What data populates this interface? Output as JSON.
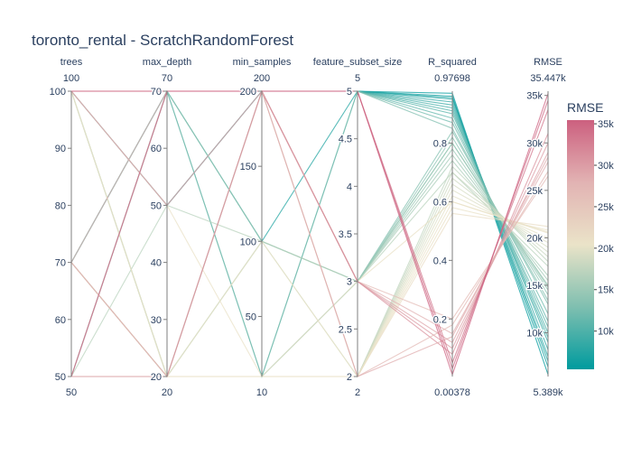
{
  "chart_data": {
    "type": "parallel_coordinates",
    "title": "toronto_rental - ScratchRandomForest",
    "color_by": "RMSE",
    "colorscale": [
      "#009B9E",
      "#42B7B9",
      "#A7D3D4",
      "#F1F1F1",
      "#E4C1D9",
      "#D691C1",
      "#C75DAB"
    ],
    "colorscale_shown": [
      "#009B9E",
      "#7fbfb0",
      "#eae3c8",
      "#e2b3b3",
      "#cc607f"
    ],
    "colorbar": {
      "title": "RMSE",
      "range": [
        5389,
        35447
      ],
      "ticks": [
        10000,
        15000,
        20000,
        25000,
        30000,
        35000
      ],
      "tick_labels": [
        "10k",
        "15k",
        "20k",
        "25k",
        "30k",
        "35k"
      ]
    },
    "dimensions": [
      {
        "label": "trees",
        "range": [
          50,
          100
        ],
        "range_labels": [
          "50",
          "100"
        ],
        "ticks": [
          50,
          60,
          70,
          80,
          90,
          100
        ],
        "tick_labels": [
          "50",
          "60",
          "70",
          "80",
          "90",
          "100"
        ]
      },
      {
        "label": "max_depth",
        "range": [
          20,
          70
        ],
        "range_labels": [
          "20",
          "70"
        ],
        "ticks": [
          20,
          30,
          40,
          50,
          60,
          70
        ],
        "tick_labels": [
          "20",
          "30",
          "40",
          "50",
          "60",
          "70"
        ]
      },
      {
        "label": "min_samples",
        "range": [
          10,
          200
        ],
        "range_labels": [
          "10",
          "200"
        ],
        "ticks": [
          50,
          100,
          150,
          200
        ],
        "tick_labels": [
          "50",
          "100",
          "150",
          "200"
        ]
      },
      {
        "label": "feature_subset_size",
        "range": [
          2,
          5
        ],
        "range_labels": [
          "2",
          "5"
        ],
        "ticks": [
          2,
          2.5,
          3,
          3.5,
          4,
          4.5,
          5
        ],
        "tick_labels": [
          "2",
          "2.5",
          "3",
          "3.5",
          "4",
          "4.5",
          "5"
        ]
      },
      {
        "label": "R_squared",
        "range": [
          0.00378,
          0.97698
        ],
        "range_labels": [
          "0.00378",
          "0.97698"
        ],
        "ticks": [
          0.2,
          0.4,
          0.6,
          0.8
        ],
        "tick_labels": [
          "0.2",
          "0.4",
          "0.6",
          "0.8"
        ]
      },
      {
        "label": "RMSE",
        "range": [
          5389,
          35447
        ],
        "range_labels": [
          "5.389k",
          "35.447k"
        ],
        "ticks": [
          10000,
          15000,
          20000,
          25000,
          30000,
          35000
        ],
        "tick_labels": [
          "10k",
          "15k",
          "20k",
          "25k",
          "30k",
          "35k"
        ]
      }
    ],
    "rows": [
      [
        100,
        70,
        200,
        5,
        0.97,
        5600
      ],
      [
        100,
        70,
        200,
        5,
        0.96,
        6400
      ],
      [
        100,
        70,
        200,
        5,
        0.955,
        7000
      ],
      [
        100,
        70,
        100,
        5,
        0.95,
        7500
      ],
      [
        100,
        50,
        200,
        5,
        0.94,
        8200
      ],
      [
        70,
        70,
        200,
        5,
        0.93,
        9000
      ],
      [
        70,
        70,
        200,
        5,
        0.92,
        9500
      ],
      [
        100,
        70,
        10,
        5,
        0.91,
        10000
      ],
      [
        50,
        70,
        200,
        5,
        0.9,
        10600
      ],
      [
        50,
        70,
        200,
        5,
        0.885,
        11200
      ],
      [
        100,
        50,
        200,
        5,
        0.87,
        12000
      ],
      [
        70,
        70,
        10,
        5,
        0.85,
        13000
      ],
      [
        50,
        70,
        100,
        3,
        0.84,
        13400
      ],
      [
        100,
        70,
        100,
        3,
        0.82,
        14000
      ],
      [
        70,
        20,
        200,
        3,
        0.8,
        14500
      ],
      [
        50,
        20,
        10,
        3,
        0.78,
        15000
      ],
      [
        100,
        20,
        100,
        3,
        0.76,
        15500
      ],
      [
        70,
        20,
        200,
        3,
        0.74,
        16000
      ],
      [
        50,
        50,
        100,
        3,
        0.7,
        17000
      ],
      [
        100,
        20,
        10,
        3,
        0.8,
        14800
      ],
      [
        100,
        20,
        10,
        2,
        0.72,
        17500
      ],
      [
        70,
        20,
        10,
        2,
        0.7,
        18000
      ],
      [
        50,
        20,
        200,
        2,
        0.68,
        18500
      ],
      [
        100,
        20,
        100,
        2,
        0.66,
        19000
      ],
      [
        50,
        20,
        10,
        2,
        0.64,
        19500
      ],
      [
        70,
        20,
        100,
        2,
        0.62,
        20000
      ],
      [
        100,
        20,
        10,
        2,
        0.6,
        20500
      ],
      [
        50,
        20,
        10,
        2,
        0.56,
        21200
      ],
      [
        100,
        50,
        10,
        2,
        0.58,
        20800
      ],
      [
        70,
        20,
        10,
        3,
        0.6,
        20600
      ],
      [
        100,
        70,
        200,
        3,
        0.2,
        26500
      ],
      [
        50,
        70,
        200,
        3,
        0.15,
        28000
      ],
      [
        70,
        20,
        200,
        3,
        0.12,
        29000
      ],
      [
        100,
        50,
        200,
        3,
        0.1,
        30000
      ],
      [
        50,
        20,
        200,
        3,
        0.08,
        31000
      ],
      [
        100,
        70,
        200,
        2,
        0.18,
        27000
      ],
      [
        70,
        70,
        200,
        2,
        0.14,
        28500
      ],
      [
        100,
        70,
        200,
        5,
        0.05,
        33500
      ],
      [
        50,
        70,
        200,
        5,
        0.03,
        34500
      ],
      [
        100,
        70,
        200,
        5,
        0.01,
        35200
      ]
    ]
  }
}
